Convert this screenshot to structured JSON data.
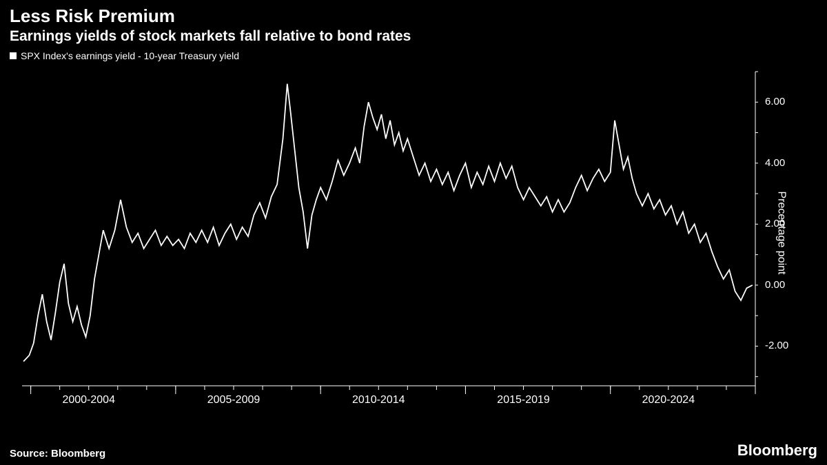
{
  "title": "Less Risk Premium",
  "subtitle": "Earnings yields of stock markets fall relative to bond rates",
  "legend": {
    "label": "SPX Index's earnings yield - 10-year Treasury yield"
  },
  "source": "Source: Bloomberg",
  "brand": "Bloomberg",
  "chart": {
    "type": "line",
    "background_color": "#000000",
    "line_color": "#ffffff",
    "line_width": 1.8,
    "axis_color": "#ffffff",
    "tick_color": "#ffffff",
    "text_color": "#ffffff",
    "x_range": [
      1999.7,
      2025.0
    ],
    "y_range": [
      -3.3,
      7.0
    ],
    "y_ticks": [
      -2.0,
      0.0,
      2.0,
      4.0,
      6.0
    ],
    "y_tick_labels": [
      "-2.00",
      "0.00",
      "2.00",
      "4.00",
      "6.00"
    ],
    "y_minor_ticks": [
      -3.0,
      -1.0,
      1.0,
      3.0,
      5.0,
      7.0
    ],
    "x_categories": [
      "2000-2004",
      "2005-2009",
      "2010-2014",
      "2015-2019",
      "2020-2024"
    ],
    "x_category_centers": [
      2002,
      2007,
      2012,
      2017,
      2022
    ],
    "x_minor_tick_step": 1,
    "y_axis_label": "Precentage point",
    "title_fontsize": 26,
    "subtitle_fontsize": 21,
    "label_fontsize": 16,
    "tick_fontsize": 15,
    "data": [
      [
        1999.75,
        -2.5
      ],
      [
        1999.95,
        -2.3
      ],
      [
        2000.1,
        -1.9
      ],
      [
        2000.25,
        -1.0
      ],
      [
        2000.4,
        -0.3
      ],
      [
        2000.55,
        -1.2
      ],
      [
        2000.7,
        -1.8
      ],
      [
        2000.85,
        -0.9
      ],
      [
        2001.0,
        0.1
      ],
      [
        2001.15,
        0.7
      ],
      [
        2001.3,
        -0.6
      ],
      [
        2001.45,
        -1.2
      ],
      [
        2001.6,
        -0.7
      ],
      [
        2001.75,
        -1.3
      ],
      [
        2001.9,
        -1.7
      ],
      [
        2002.05,
        -1.0
      ],
      [
        2002.2,
        0.2
      ],
      [
        2002.35,
        1.0
      ],
      [
        2002.5,
        1.8
      ],
      [
        2002.7,
        1.2
      ],
      [
        2002.9,
        1.8
      ],
      [
        2003.1,
        2.8
      ],
      [
        2003.3,
        1.9
      ],
      [
        2003.5,
        1.4
      ],
      [
        2003.7,
        1.7
      ],
      [
        2003.9,
        1.2
      ],
      [
        2004.1,
        1.5
      ],
      [
        2004.3,
        1.8
      ],
      [
        2004.5,
        1.3
      ],
      [
        2004.7,
        1.6
      ],
      [
        2004.9,
        1.3
      ],
      [
        2005.1,
        1.5
      ],
      [
        2005.3,
        1.2
      ],
      [
        2005.5,
        1.7
      ],
      [
        2005.7,
        1.4
      ],
      [
        2005.9,
        1.8
      ],
      [
        2006.1,
        1.4
      ],
      [
        2006.3,
        1.9
      ],
      [
        2006.5,
        1.3
      ],
      [
        2006.7,
        1.7
      ],
      [
        2006.9,
        2.0
      ],
      [
        2007.1,
        1.5
      ],
      [
        2007.3,
        1.9
      ],
      [
        2007.5,
        1.6
      ],
      [
        2007.7,
        2.3
      ],
      [
        2007.9,
        2.7
      ],
      [
        2008.1,
        2.2
      ],
      [
        2008.3,
        2.9
      ],
      [
        2008.5,
        3.3
      ],
      [
        2008.7,
        4.8
      ],
      [
        2008.85,
        6.6
      ],
      [
        2008.95,
        5.8
      ],
      [
        2009.1,
        4.5
      ],
      [
        2009.25,
        3.2
      ],
      [
        2009.4,
        2.4
      ],
      [
        2009.55,
        1.2
      ],
      [
        2009.7,
        2.3
      ],
      [
        2009.85,
        2.8
      ],
      [
        2010.0,
        3.2
      ],
      [
        2010.2,
        2.8
      ],
      [
        2010.4,
        3.4
      ],
      [
        2010.6,
        4.1
      ],
      [
        2010.8,
        3.6
      ],
      [
        2011.0,
        4.0
      ],
      [
        2011.2,
        4.5
      ],
      [
        2011.35,
        4.0
      ],
      [
        2011.5,
        5.2
      ],
      [
        2011.65,
        6.0
      ],
      [
        2011.8,
        5.5
      ],
      [
        2011.95,
        5.1
      ],
      [
        2012.1,
        5.6
      ],
      [
        2012.25,
        4.8
      ],
      [
        2012.4,
        5.4
      ],
      [
        2012.55,
        4.6
      ],
      [
        2012.7,
        5.0
      ],
      [
        2012.85,
        4.4
      ],
      [
        2013.0,
        4.8
      ],
      [
        2013.2,
        4.2
      ],
      [
        2013.4,
        3.6
      ],
      [
        2013.6,
        4.0
      ],
      [
        2013.8,
        3.4
      ],
      [
        2014.0,
        3.8
      ],
      [
        2014.2,
        3.3
      ],
      [
        2014.4,
        3.7
      ],
      [
        2014.6,
        3.1
      ],
      [
        2014.8,
        3.6
      ],
      [
        2015.0,
        4.0
      ],
      [
        2015.2,
        3.2
      ],
      [
        2015.4,
        3.7
      ],
      [
        2015.6,
        3.3
      ],
      [
        2015.8,
        3.9
      ],
      [
        2016.0,
        3.4
      ],
      [
        2016.2,
        4.0
      ],
      [
        2016.4,
        3.5
      ],
      [
        2016.6,
        3.9
      ],
      [
        2016.8,
        3.2
      ],
      [
        2017.0,
        2.8
      ],
      [
        2017.2,
        3.2
      ],
      [
        2017.4,
        2.9
      ],
      [
        2017.6,
        2.6
      ],
      [
        2017.8,
        2.9
      ],
      [
        2018.0,
        2.4
      ],
      [
        2018.2,
        2.8
      ],
      [
        2018.4,
        2.4
      ],
      [
        2018.6,
        2.7
      ],
      [
        2018.8,
        3.2
      ],
      [
        2019.0,
        3.6
      ],
      [
        2019.2,
        3.1
      ],
      [
        2019.4,
        3.5
      ],
      [
        2019.6,
        3.8
      ],
      [
        2019.8,
        3.4
      ],
      [
        2020.0,
        3.7
      ],
      [
        2020.15,
        5.4
      ],
      [
        2020.3,
        4.6
      ],
      [
        2020.45,
        3.8
      ],
      [
        2020.6,
        4.2
      ],
      [
        2020.75,
        3.5
      ],
      [
        2020.9,
        3.0
      ],
      [
        2021.1,
        2.6
      ],
      [
        2021.3,
        3.0
      ],
      [
        2021.5,
        2.5
      ],
      [
        2021.7,
        2.8
      ],
      [
        2021.9,
        2.3
      ],
      [
        2022.1,
        2.6
      ],
      [
        2022.3,
        2.0
      ],
      [
        2022.5,
        2.4
      ],
      [
        2022.7,
        1.7
      ],
      [
        2022.9,
        2.0
      ],
      [
        2023.1,
        1.4
      ],
      [
        2023.3,
        1.7
      ],
      [
        2023.5,
        1.1
      ],
      [
        2023.7,
        0.6
      ],
      [
        2023.9,
        0.2
      ],
      [
        2024.1,
        0.5
      ],
      [
        2024.3,
        -0.2
      ],
      [
        2024.5,
        -0.5
      ],
      [
        2024.7,
        -0.1
      ],
      [
        2024.9,
        0.0
      ]
    ]
  }
}
